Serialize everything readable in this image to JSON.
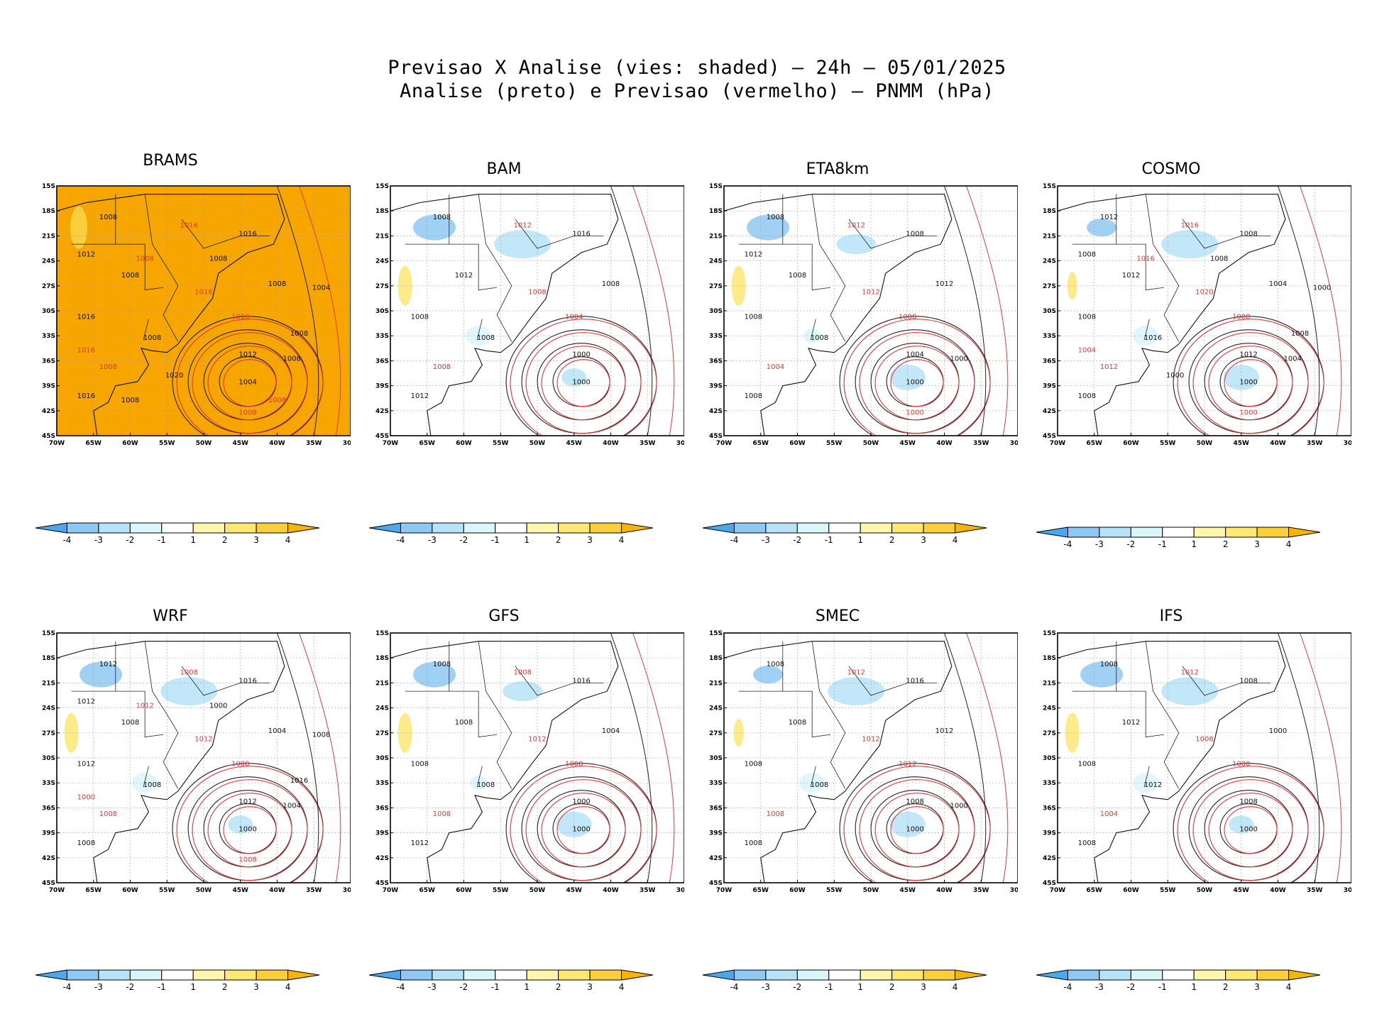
{
  "chart_data": {
    "type": "heatmap",
    "title_line1": "Previsao X Analise (vies: shaded) — 24h — 05/01/2025",
    "title_line2": "Analise (preto) e Previsao (vermelho) — PNMM (hPa)",
    "lat_labels": [
      "15S",
      "18S",
      "21S",
      "24S",
      "27S",
      "30S",
      "33S",
      "36S",
      "39S",
      "42S",
      "45S"
    ],
    "lon_labels": [
      "70W",
      "65W",
      "60W",
      "55W",
      "50W",
      "45W",
      "40W",
      "35W",
      "30W"
    ],
    "lat_range": [
      -45,
      -15
    ],
    "lon_range": [
      -70,
      -30
    ],
    "colorbar": {
      "ticks": [
        "-4",
        "-3",
        "-2",
        "-1",
        "1",
        "2",
        "3",
        "4"
      ],
      "colors": [
        "#4aa8ef",
        "#8fc8f2",
        "#b6e3f7",
        "#d9f6fb",
        "#ffffff",
        "#fff6ae",
        "#fde874",
        "#fbcf3b",
        "#f7b500"
      ]
    },
    "panels": [
      {
        "name": "BRAMS",
        "labels": [
          "1008",
          "1016",
          "1016",
          "1008",
          "1016",
          "1016",
          "1008",
          "1008",
          "1016",
          "1008",
          "1016",
          "1012",
          "1008",
          "1008",
          "1012",
          "1004",
          "1008",
          "1008",
          "1008",
          "1016",
          "1020",
          "1008",
          "1008"
        ],
        "low_center_pressure": "1004"
      },
      {
        "name": "BAM",
        "labels": [
          "1008",
          "1012",
          "1016",
          "1012",
          "1008",
          "1008",
          "1008",
          "1008",
          "1012",
          "1008",
          "1004",
          "1000"
        ],
        "low_center_pressure": "1000"
      },
      {
        "name": "ETA8km",
        "labels": [
          "1008",
          "1012",
          "1008",
          "1008",
          "1012",
          "1008",
          "1008",
          "1004",
          "1008",
          "1012",
          "1008",
          "1004",
          "1000",
          "1000",
          "1012"
        ],
        "low_center_pressure": "1000"
      },
      {
        "name": "COSMO",
        "labels": [
          "1012",
          "1016",
          "1008",
          "1012",
          "1020",
          "1008",
          "1016",
          "1012",
          "1008",
          "1004",
          "1008",
          "1012",
          "1004",
          "1000",
          "1008",
          "1000",
          "1016",
          "1008",
          "1008",
          "1004",
          "1000"
        ],
        "low_center_pressure": "1000"
      },
      {
        "name": "WRF",
        "labels": [
          "1012",
          "1008",
          "1016",
          "1008",
          "1012",
          "1012",
          "1008",
          "1008",
          "1008",
          "1004",
          "1008",
          "1012",
          "1004",
          "1008",
          "1012",
          "1008",
          "1012",
          "1000",
          "1016",
          "1000"
        ],
        "low_center_pressure": "1000"
      },
      {
        "name": "GFS",
        "labels": [
          "1008",
          "1008",
          "1016",
          "1008",
          "1012",
          "1008",
          "1008",
          "1008",
          "1012",
          "1004",
          "1008",
          "1000"
        ],
        "low_center_pressure": "1000"
      },
      {
        "name": "SMEC",
        "labels": [
          "1008",
          "1012",
          "1016",
          "1008",
          "1012",
          "1008",
          "1008",
          "1008",
          "1008",
          "1012",
          "1012",
          "1008",
          "1000"
        ],
        "low_center_pressure": "1000"
      },
      {
        "name": "IFS",
        "labels": [
          "1008",
          "1012",
          "1008",
          "1012",
          "1008",
          "1008",
          "1012",
          "1004",
          "1008",
          "1000",
          "1000",
          "1008"
        ],
        "low_center_pressure": "1000"
      }
    ]
  }
}
